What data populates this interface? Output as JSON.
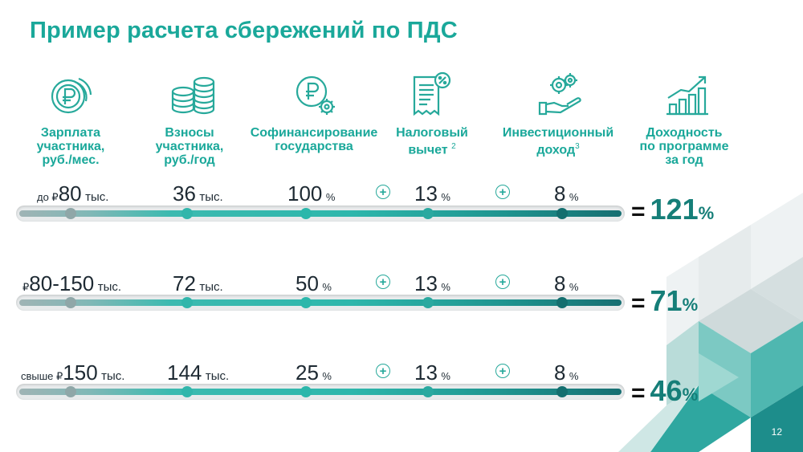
{
  "title": "Пример расчета сбережений по ПДС",
  "columns": [
    {
      "label_lines": [
        "Зарплата",
        "участника,",
        "руб./мес."
      ],
      "icon": "coins-ruble-icon"
    },
    {
      "label_lines": [
        "Взносы",
        "участника,",
        "руб./год"
      ],
      "icon": "coin-stack-icon"
    },
    {
      "label_lines": [
        "Софинансирование",
        "государства"
      ],
      "icon": "ruble-gear-icon"
    },
    {
      "label_lines": [
        "Налоговый",
        "вычет"
      ],
      "sup": "2",
      "icon": "tax-document-icon"
    },
    {
      "label_lines": [
        "Инвестиционный",
        "доход"
      ],
      "sup": "3",
      "icon": "hand-gears-icon"
    },
    {
      "label_lines": [
        "Доходность",
        "по программе",
        "за год"
      ],
      "icon": "growth-chart-icon"
    }
  ],
  "rows": [
    {
      "salary_prefix": "до ₽",
      "salary": "80",
      "salary_unit": "тыс.",
      "contribution": "36",
      "contribution_unit": "тыс.",
      "cofin": "100",
      "tax": "13",
      "invest": "8",
      "pct": "%",
      "result_eq": "=",
      "result": "121",
      "result_pct": "%"
    },
    {
      "salary_prefix": "₽",
      "salary": "80-150",
      "salary_unit": "тыс.",
      "contribution": "72",
      "contribution_unit": "тыс.",
      "cofin": "50",
      "tax": "13",
      "invest": "8",
      "pct": "%",
      "result_eq": "=",
      "result": "71",
      "result_pct": "%"
    },
    {
      "salary_prefix": "свыше ₽",
      "salary": "150",
      "salary_unit": "тыс.",
      "contribution": "144",
      "contribution_unit": "тыс.",
      "cofin": "25",
      "tax": "13",
      "invest": "8",
      "pct": "%",
      "result_eq": "=",
      "result": "46",
      "result_pct": "%"
    }
  ],
  "plus_sign": "+",
  "page_number": "12",
  "colors": {
    "accent": "#1aa89a",
    "dark_teal": "#157e78",
    "dot_gray": "#8fa7a8",
    "dot_teal": "#2cb7ab",
    "dot_dark": "#146f6f"
  }
}
